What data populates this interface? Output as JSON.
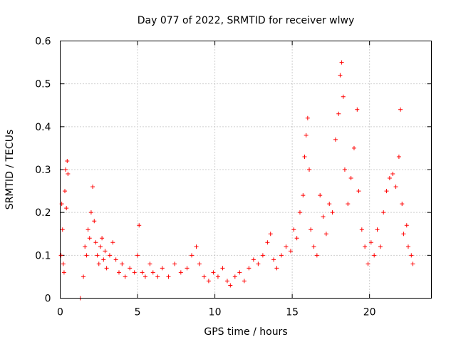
{
  "chart_data": {
    "type": "scatter",
    "title": "Day 077 of 2022, SRMTID for receiver wlwy",
    "xlabel": "GPS time / hours",
    "ylabel": "SRMTID / TECUs",
    "xlim": [
      0,
      24
    ],
    "ylim": [
      0,
      0.6
    ],
    "xticks": [
      0,
      5,
      10,
      15,
      20
    ],
    "xtick_labels": [
      "0",
      "5",
      "10",
      "15",
      "20"
    ],
    "yticks": [
      0,
      0.1,
      0.2,
      0.3,
      0.4,
      0.5,
      0.6
    ],
    "ytick_labels": [
      "0",
      "0.1",
      "0.2",
      "0.3",
      "0.4",
      "0.5",
      "0.6"
    ],
    "grid": true,
    "marker": "+",
    "color": "#ff0000",
    "series": [
      {
        "name": "wlwy",
        "points": [
          [
            0.05,
            0.1
          ],
          [
            0.1,
            0.22
          ],
          [
            0.15,
            0.16
          ],
          [
            0.2,
            0.08
          ],
          [
            0.25,
            0.06
          ],
          [
            0.3,
            0.25
          ],
          [
            0.35,
            0.3
          ],
          [
            0.4,
            0.21
          ],
          [
            0.45,
            0.32
          ],
          [
            0.5,
            0.29
          ],
          [
            1.3,
            0.0
          ],
          [
            1.5,
            0.05
          ],
          [
            1.6,
            0.12
          ],
          [
            1.7,
            0.1
          ],
          [
            1.8,
            0.16
          ],
          [
            1.9,
            0.14
          ],
          [
            2.0,
            0.2
          ],
          [
            2.1,
            0.26
          ],
          [
            2.2,
            0.18
          ],
          [
            2.3,
            0.13
          ],
          [
            2.4,
            0.1
          ],
          [
            2.5,
            0.08
          ],
          [
            2.6,
            0.12
          ],
          [
            2.7,
            0.14
          ],
          [
            2.8,
            0.09
          ],
          [
            2.9,
            0.11
          ],
          [
            3.0,
            0.07
          ],
          [
            3.2,
            0.1
          ],
          [
            3.4,
            0.13
          ],
          [
            3.6,
            0.09
          ],
          [
            3.8,
            0.06
          ],
          [
            4.0,
            0.08
          ],
          [
            4.2,
            0.05
          ],
          [
            4.5,
            0.07
          ],
          [
            4.8,
            0.06
          ],
          [
            5.0,
            0.1
          ],
          [
            5.1,
            0.17
          ],
          [
            5.3,
            0.06
          ],
          [
            5.5,
            0.05
          ],
          [
            5.8,
            0.08
          ],
          [
            6.0,
            0.06
          ],
          [
            6.3,
            0.05
          ],
          [
            6.6,
            0.07
          ],
          [
            7.0,
            0.05
          ],
          [
            7.4,
            0.08
          ],
          [
            7.8,
            0.06
          ],
          [
            8.2,
            0.07
          ],
          [
            8.5,
            0.1
          ],
          [
            8.8,
            0.12
          ],
          [
            9.0,
            0.08
          ],
          [
            9.3,
            0.05
          ],
          [
            9.6,
            0.04
          ],
          [
            9.9,
            0.06
          ],
          [
            10.2,
            0.05
          ],
          [
            10.5,
            0.07
          ],
          [
            10.8,
            0.04
          ],
          [
            11.0,
            0.03
          ],
          [
            11.3,
            0.05
          ],
          [
            11.6,
            0.06
          ],
          [
            11.9,
            0.04
          ],
          [
            12.2,
            0.07
          ],
          [
            12.5,
            0.09
          ],
          [
            12.8,
            0.08
          ],
          [
            13.1,
            0.1
          ],
          [
            13.4,
            0.13
          ],
          [
            13.6,
            0.15
          ],
          [
            13.8,
            0.09
          ],
          [
            14.0,
            0.07
          ],
          [
            14.3,
            0.1
          ],
          [
            14.6,
            0.12
          ],
          [
            14.9,
            0.11
          ],
          [
            15.1,
            0.16
          ],
          [
            15.3,
            0.14
          ],
          [
            15.5,
            0.2
          ],
          [
            15.7,
            0.24
          ],
          [
            15.8,
            0.33
          ],
          [
            15.9,
            0.38
          ],
          [
            16.0,
            0.42
          ],
          [
            16.1,
            0.3
          ],
          [
            16.2,
            0.16
          ],
          [
            16.4,
            0.12
          ],
          [
            16.6,
            0.1
          ],
          [
            16.8,
            0.24
          ],
          [
            17.0,
            0.19
          ],
          [
            17.2,
            0.15
          ],
          [
            17.4,
            0.22
          ],
          [
            17.6,
            0.2
          ],
          [
            17.8,
            0.37
          ],
          [
            18.0,
            0.43
          ],
          [
            18.1,
            0.52
          ],
          [
            18.2,
            0.55
          ],
          [
            18.3,
            0.47
          ],
          [
            18.4,
            0.3
          ],
          [
            18.6,
            0.22
          ],
          [
            18.8,
            0.28
          ],
          [
            19.0,
            0.35
          ],
          [
            19.2,
            0.44
          ],
          [
            19.3,
            0.25
          ],
          [
            19.5,
            0.16
          ],
          [
            19.7,
            0.12
          ],
          [
            19.9,
            0.08
          ],
          [
            20.1,
            0.13
          ],
          [
            20.3,
            0.1
          ],
          [
            20.5,
            0.16
          ],
          [
            20.7,
            0.12
          ],
          [
            20.9,
            0.2
          ],
          [
            21.1,
            0.25
          ],
          [
            21.3,
            0.28
          ],
          [
            21.5,
            0.29
          ],
          [
            21.7,
            0.26
          ],
          [
            21.9,
            0.33
          ],
          [
            22.0,
            0.44
          ],
          [
            22.1,
            0.22
          ],
          [
            22.2,
            0.15
          ],
          [
            22.4,
            0.17
          ],
          [
            22.5,
            0.12
          ],
          [
            22.7,
            0.1
          ],
          [
            22.8,
            0.08
          ]
        ]
      }
    ]
  }
}
